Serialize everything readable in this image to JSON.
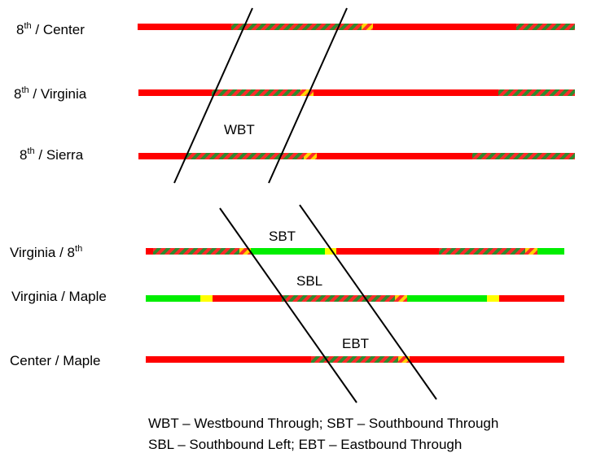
{
  "colors": {
    "red": "#ff0000",
    "green": "#00ee00",
    "yellow": "#ffff00",
    "hatch_green": "#2e8b2e",
    "hatch_red": "#ff2a2a",
    "hatch_yellow": "#ffd400",
    "line": "#000000"
  },
  "intersections": [
    {
      "main": "8",
      "sup": "th",
      "rest": " / Center"
    },
    {
      "main": "8",
      "sup": "th",
      "rest": " / Virginia"
    },
    {
      "main": "8",
      "sup": "th",
      "rest": " / Sierra"
    },
    {
      "main": "Virginia / 8",
      "sup": "th",
      "rest": ""
    },
    {
      "main": "Virginia / Maple",
      "sup": "",
      "rest": ""
    },
    {
      "main": "Center / Maple",
      "sup": "",
      "rest": ""
    }
  ],
  "signal_rows": [
    [
      [
        "red",
        169,
        284
      ],
      [
        "hg",
        284,
        444
      ],
      [
        "hy",
        444,
        458
      ],
      [
        "red",
        458,
        634
      ],
      [
        "hg",
        634,
        706
      ]
    ],
    [
      [
        "red",
        170,
        260
      ],
      [
        "hg",
        260,
        369
      ],
      [
        "hy",
        369,
        385
      ],
      [
        "red",
        385,
        612
      ],
      [
        "hg",
        612,
        706
      ]
    ],
    [
      [
        "red",
        170,
        228
      ],
      [
        "hg",
        228,
        373
      ],
      [
        "hy",
        373,
        389
      ],
      [
        "red",
        389,
        580
      ],
      [
        "hg",
        580,
        706
      ]
    ],
    [
      [
        "red",
        179,
        188
      ],
      [
        "hg",
        188,
        294
      ],
      [
        "hy",
        294,
        308
      ],
      [
        "green",
        308,
        399
      ],
      [
        "yellow",
        399,
        413
      ],
      [
        "red",
        413,
        539
      ],
      [
        "hg",
        539,
        645
      ],
      [
        "hy",
        645,
        660
      ],
      [
        "green",
        660,
        693
      ]
    ],
    [
      [
        "green",
        179,
        246
      ],
      [
        "yellow",
        246,
        261
      ],
      [
        "red",
        261,
        346
      ],
      [
        "hg",
        346,
        485
      ],
      [
        "hy",
        485,
        500
      ],
      [
        "green",
        500,
        598
      ],
      [
        "yellow",
        598,
        613
      ],
      [
        "red",
        613,
        693
      ]
    ],
    [
      [
        "red",
        179,
        382
      ],
      [
        "hg",
        382,
        489
      ],
      [
        "hy",
        489,
        503
      ],
      [
        "red",
        503,
        693
      ]
    ]
  ],
  "band_labels": {
    "wbt": "WBT",
    "sbt": "SBT",
    "sbl": "SBL",
    "ebt": "EBT"
  },
  "legend": {
    "line1": "WBT – Westbound Through; SBT – Southbound Through",
    "line2": "SBL – Southbound Left; EBT – Eastbound Through"
  }
}
